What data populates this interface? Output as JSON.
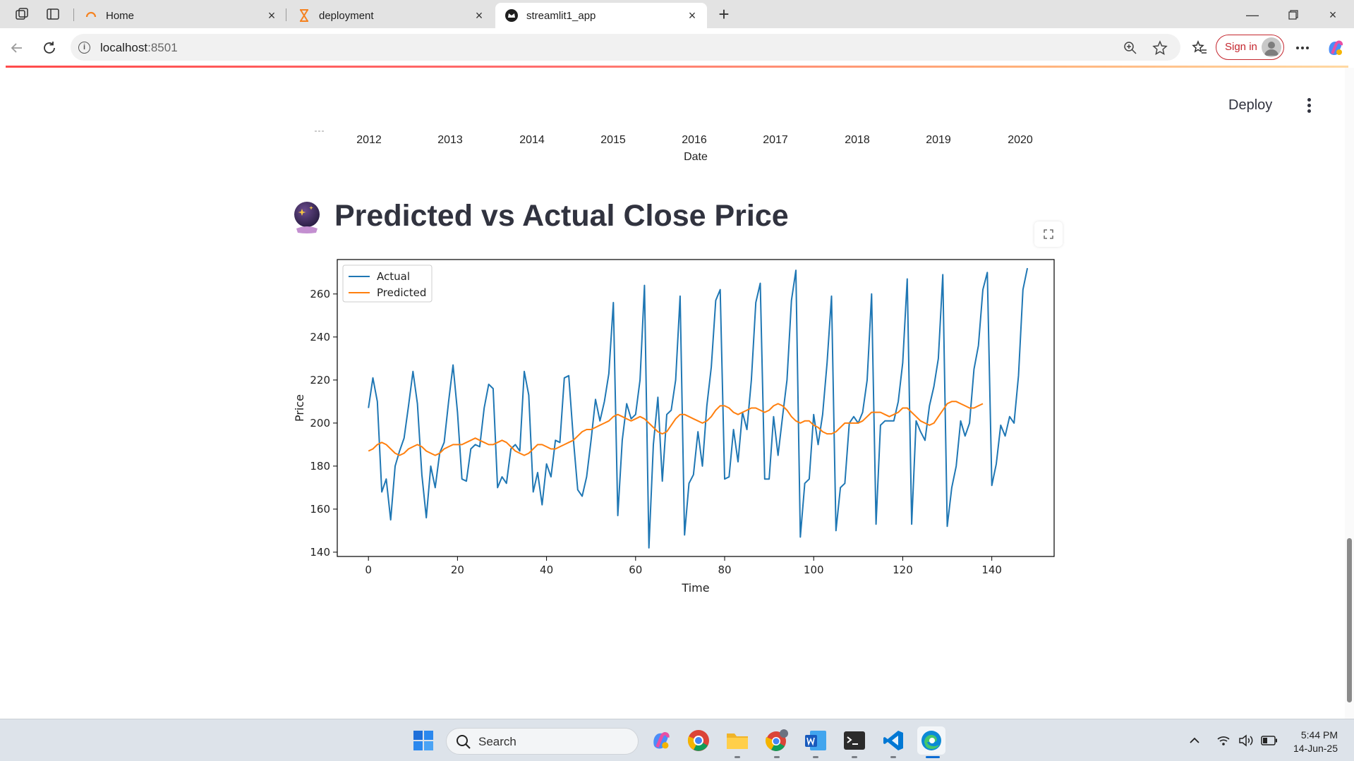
{
  "browser": {
    "tabs": [
      {
        "title": "Home",
        "icon": "streamlit-loading-icon"
      },
      {
        "title": "deployment",
        "icon": "hourglass-icon"
      },
      {
        "title": "streamlit1_app",
        "icon": "streamlit-crown-icon",
        "active": true
      }
    ],
    "url_host": "localhost",
    "url_port": ":8501",
    "signin_label": "Sign in"
  },
  "app": {
    "deploy_label": "Deploy",
    "previous_chart": {
      "x_ticks": [
        "2012",
        "2013",
        "2014",
        "2015",
        "2016",
        "2017",
        "2018",
        "2019",
        "2020"
      ],
      "xlabel": "Date"
    },
    "heading": "Predicted vs Actual Close Price",
    "heading_icon": "crystal-ball-icon"
  },
  "chart_data": {
    "type": "line",
    "xlabel": "Time",
    "ylabel": "Price",
    "xlim": [
      -7,
      154
    ],
    "ylim": [
      138,
      276
    ],
    "x_ticks": [
      0,
      20,
      40,
      60,
      80,
      100,
      120,
      140
    ],
    "y_ticks": [
      140,
      160,
      180,
      200,
      220,
      240,
      260
    ],
    "legend": {
      "placement": "top-left",
      "entries": [
        "Actual",
        "Predicted"
      ]
    },
    "grid": false,
    "series": [
      {
        "name": "Actual",
        "color": "#1f77b4",
        "values": [
          207,
          221,
          210,
          168,
          174,
          155,
          180,
          187,
          193,
          208,
          224,
          209,
          176,
          156,
          180,
          170,
          186,
          191,
          210,
          227,
          205,
          174,
          173,
          188,
          190,
          189,
          207,
          218,
          216,
          170,
          175,
          172,
          188,
          190,
          187,
          224,
          213,
          168,
          177,
          162,
          181,
          175,
          192,
          191,
          221,
          222,
          193,
          169,
          166,
          175,
          192,
          211,
          201,
          210,
          223,
          256,
          157,
          192,
          209,
          202,
          204,
          220,
          264,
          142,
          190,
          212,
          173,
          204,
          206,
          220,
          259,
          148,
          172,
          176,
          196,
          180,
          208,
          226,
          257,
          262,
          174,
          175,
          197,
          182,
          205,
          197,
          220,
          256,
          265,
          174,
          174,
          203,
          185,
          203,
          220,
          257,
          271,
          147,
          172,
          174,
          204,
          190,
          204,
          228,
          259,
          150,
          170,
          172,
          200,
          203,
          200,
          205,
          220,
          260,
          153,
          199,
          201,
          201,
          201,
          210,
          228,
          267,
          153,
          201,
          196,
          192,
          208,
          217,
          230,
          269,
          152,
          170,
          180,
          201,
          194,
          200,
          225,
          236,
          262,
          270,
          171,
          181,
          199,
          194,
          203,
          200,
          222,
          262,
          272
        ],
        "note_count": "x runs 0..148"
      },
      {
        "name": "Predicted",
        "color": "#ff7f0e",
        "values": [
          187,
          188,
          190,
          191,
          190,
          188,
          186,
          185,
          186,
          188,
          189,
          190,
          189,
          187,
          186,
          185,
          186,
          188,
          189,
          190,
          190,
          190,
          191,
          192,
          193,
          192,
          191,
          190,
          190,
          191,
          192,
          191,
          189,
          187,
          186,
          185,
          186,
          188,
          190,
          190,
          189,
          188,
          188,
          189,
          190,
          191,
          192,
          194,
          196,
          197,
          197,
          198,
          199,
          200,
          201,
          203,
          204,
          203,
          202,
          201,
          202,
          203,
          202,
          200,
          198,
          196,
          195,
          196,
          199,
          202,
          204,
          204,
          203,
          202,
          201,
          200,
          201,
          203,
          206,
          208,
          208,
          207,
          205,
          204,
          205,
          206,
          207,
          207,
          206,
          205,
          206,
          208,
          209,
          208,
          206,
          203,
          201,
          200,
          201,
          201,
          199,
          198,
          196,
          195,
          195,
          196,
          198,
          200,
          200,
          200,
          200,
          201,
          203,
          205,
          205,
          205,
          204,
          203,
          204,
          205,
          207,
          207,
          205,
          203,
          201,
          200,
          199,
          200,
          203,
          206,
          209,
          210,
          210,
          209,
          208,
          207,
          207,
          208,
          209
        ]
      }
    ]
  },
  "taskbar": {
    "search_label": "Search",
    "time": "5:44 PM",
    "date": "14-Jun-25"
  },
  "colors": {
    "streamlit_accent": "#ff4b4b",
    "signin_red": "#c4262e",
    "actual_line": "#1f77b4",
    "predicted_line": "#ff7f0e"
  }
}
